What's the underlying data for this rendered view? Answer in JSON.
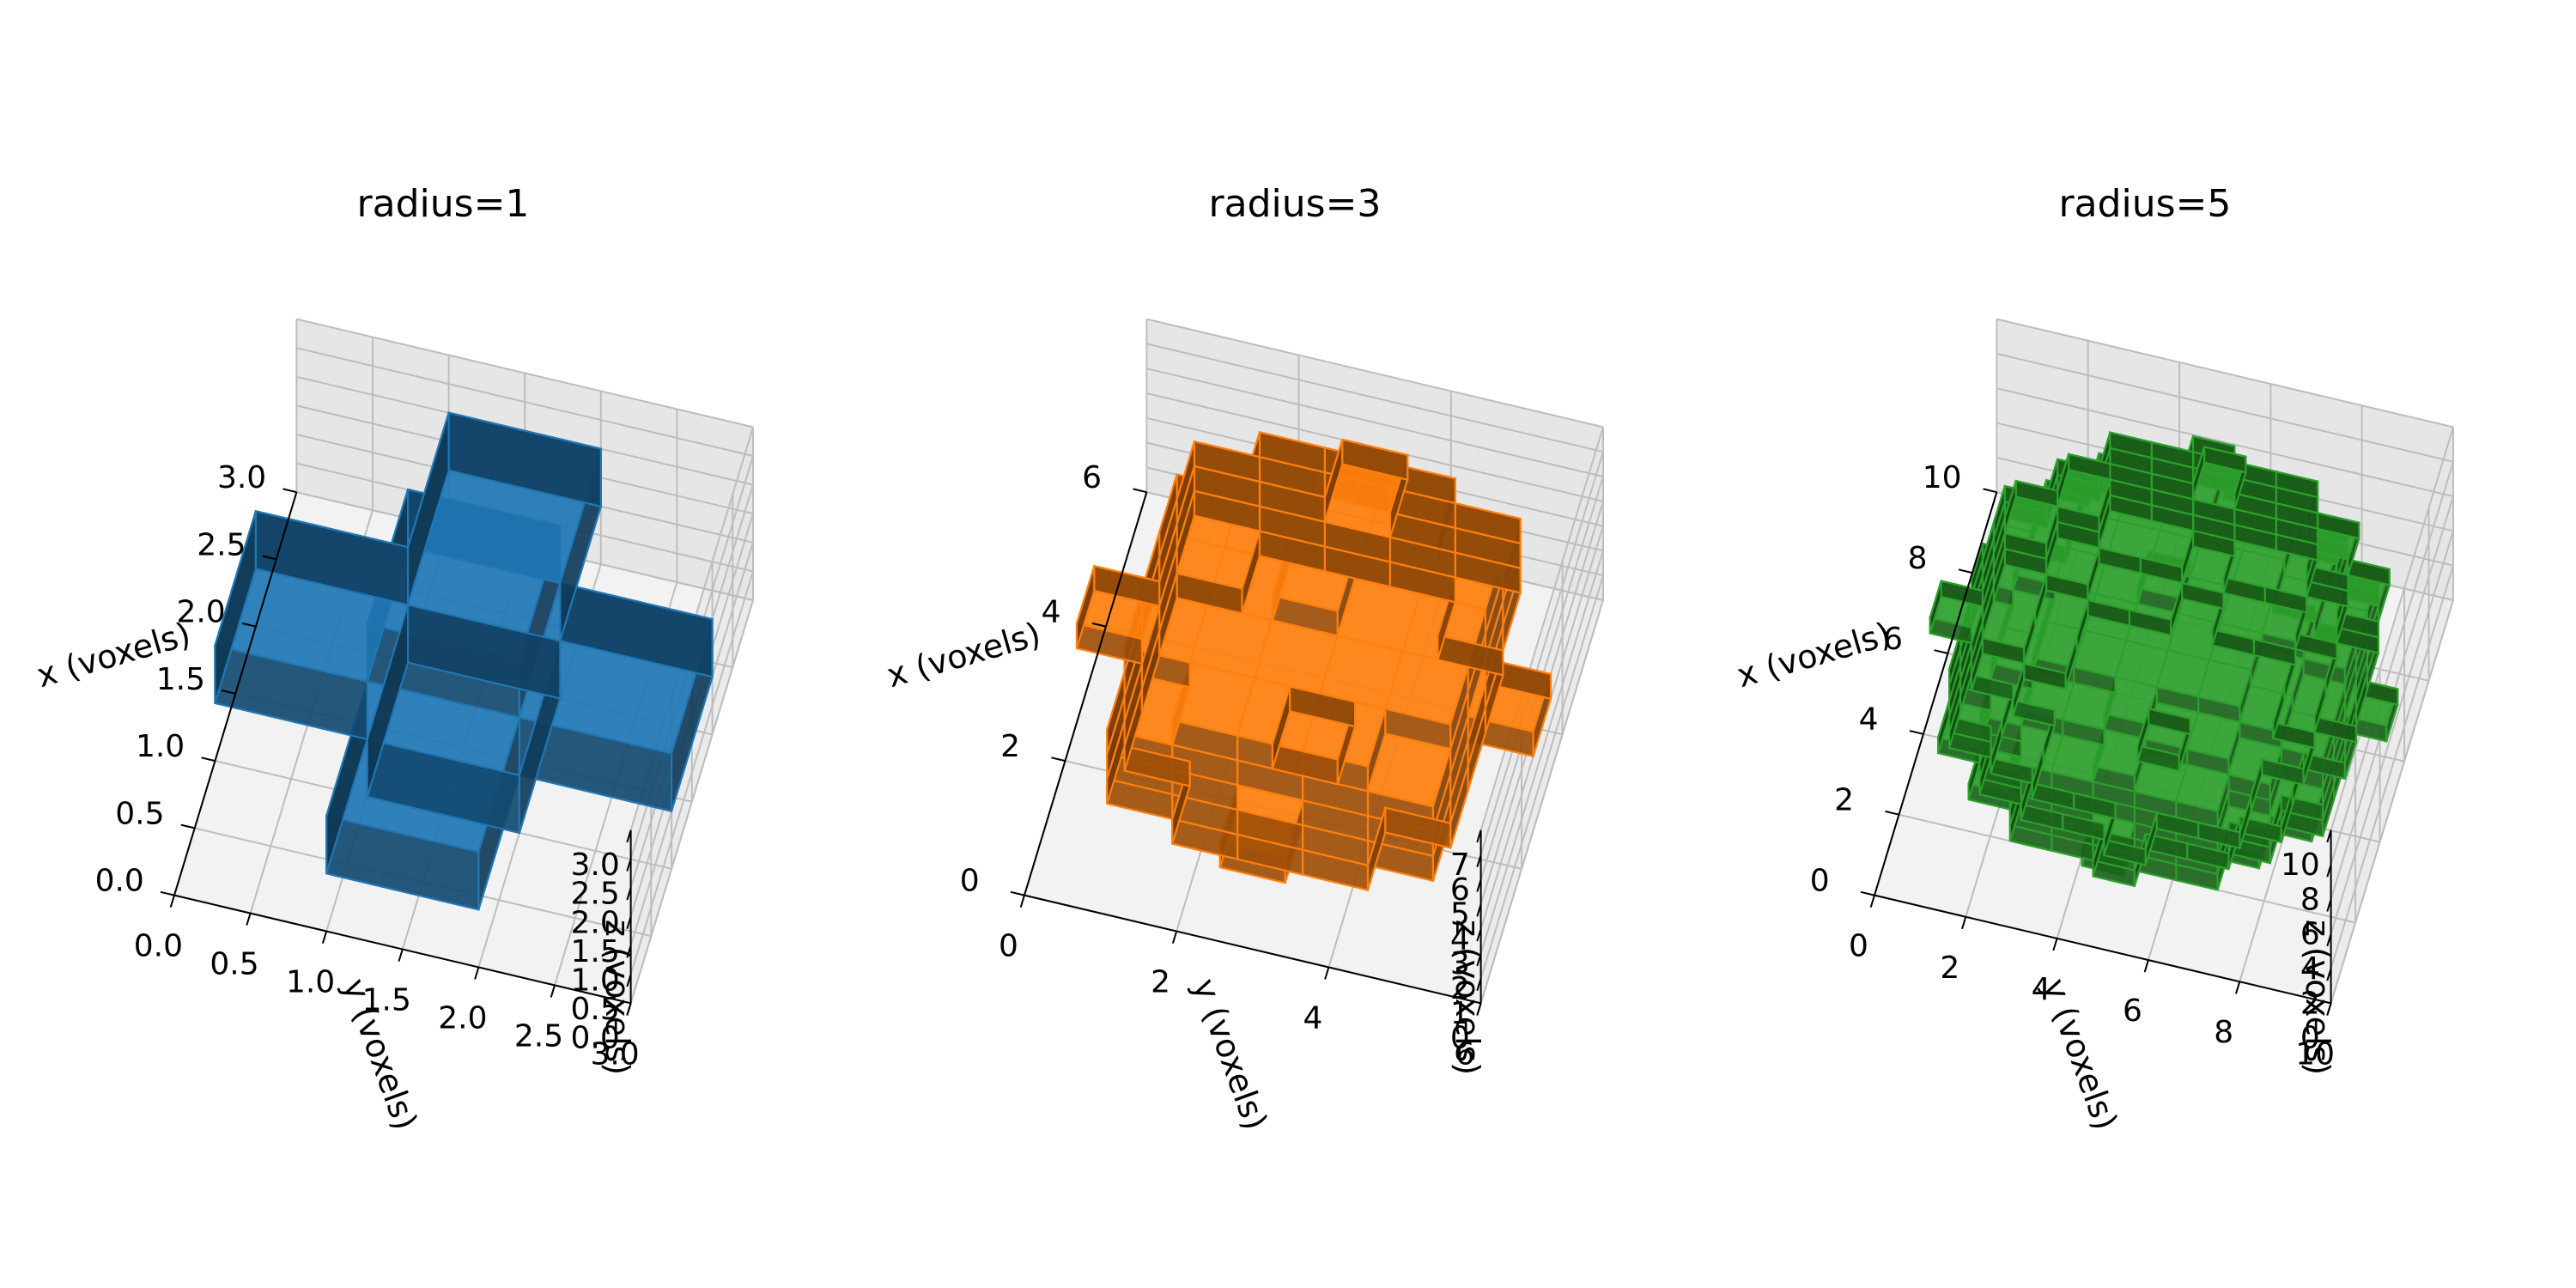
{
  "chart_data": [
    {
      "type": "voxel",
      "title": "radius=1",
      "radius": 1,
      "color": "#1f77b4",
      "xlabel": "x (voxels)",
      "ylabel": "y (voxels)",
      "zlabel": "z (voxels)",
      "xlim": [
        0,
        3
      ],
      "ylim": [
        0,
        3
      ],
      "zlim": [
        0,
        3
      ],
      "xticks": [
        "0.0",
        "0.5",
        "1.0",
        "1.5",
        "2.0",
        "2.5",
        "3.0"
      ],
      "yticks": [
        "0.0",
        "0.5",
        "1.0",
        "1.5",
        "2.0",
        "2.5",
        "3.0"
      ],
      "zticks": [
        "0.0",
        "0.5",
        "1.0",
        "1.5",
        "2.0",
        "2.5",
        "3.0"
      ],
      "grid": true
    },
    {
      "type": "voxel",
      "title": "radius=3",
      "radius": 3,
      "color": "#ff7f0e",
      "xlabel": "x (voxels)",
      "ylabel": "y (voxels)",
      "zlabel": "z (voxels)",
      "xlim": [
        0,
        7
      ],
      "ylim": [
        0,
        7
      ],
      "zlim": [
        0,
        7
      ],
      "xticks": [
        "0",
        "2",
        "4",
        "6"
      ],
      "yticks": [
        "0",
        "2",
        "4",
        "6"
      ],
      "zticks": [
        "0",
        "1",
        "2",
        "3",
        "4",
        "5",
        "6",
        "7"
      ],
      "grid": true
    },
    {
      "type": "voxel",
      "title": "radius=5",
      "radius": 5,
      "color": "#2ca02c",
      "xlabel": "x (voxels)",
      "ylabel": "y (voxels)",
      "zlabel": "z (voxels)",
      "xlim": [
        0,
        11
      ],
      "ylim": [
        0,
        11
      ],
      "zlim": [
        0,
        11
      ],
      "xticks": [
        "0",
        "2",
        "4",
        "6",
        "8",
        "10"
      ],
      "yticks": [
        "0",
        "2",
        "4",
        "6",
        "8",
        "10"
      ],
      "zticks": [
        "0",
        "2",
        "4",
        "6",
        "8",
        "10"
      ],
      "grid": true
    }
  ]
}
